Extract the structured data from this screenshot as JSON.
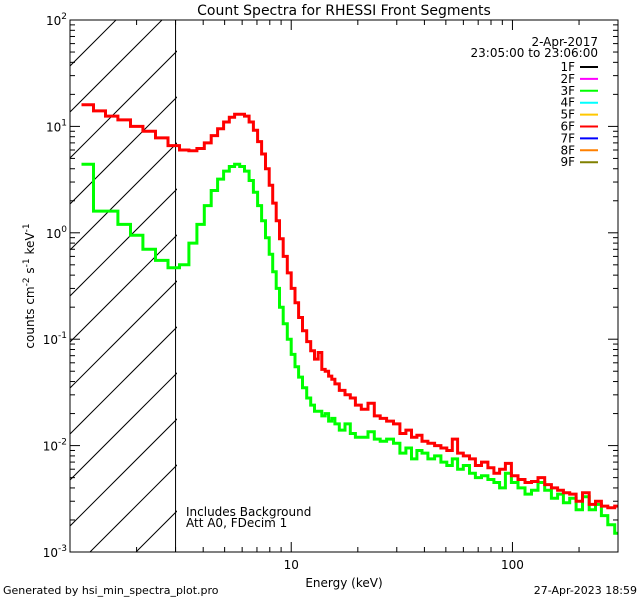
{
  "chart_data": {
    "type": "line",
    "title": "Count Spectra for RHESSI Front Segments",
    "xlabel": "Energy (keV)",
    "ylabel_parts": [
      "counts cm",
      "-2",
      " s",
      "-1",
      " keV",
      "-1"
    ],
    "xscale": "log",
    "yscale": "log",
    "xlim": [
      1,
      300
    ],
    "ylim": [
      0.001,
      100
    ],
    "x_ticks": [
      {
        "value": 10,
        "label": "10"
      },
      {
        "value": 100,
        "label": "100"
      }
    ],
    "x_tick_label_offset_note": "",
    "y_ticks": [
      {
        "value": 0.001,
        "base": "10",
        "exp": "-3"
      },
      {
        "value": 0.01,
        "base": "10",
        "exp": "-2"
      },
      {
        "value": 0.1,
        "base": "10",
        "exp": "-1"
      },
      {
        "value": 1,
        "base": "10",
        "exp": "0"
      },
      {
        "value": 10,
        "base": "10",
        "exp": "1"
      },
      {
        "value": 100,
        "base": "10",
        "exp": "2"
      }
    ],
    "x_minor_ticks": [
      2,
      3,
      4,
      5,
      6,
      7,
      8,
      9,
      20,
      30,
      40,
      50,
      60,
      70,
      80,
      90,
      200,
      300
    ],
    "hatched_region_keV": [
      1,
      3
    ],
    "legend": {
      "placement": "top-right",
      "date": "2-Apr-2017",
      "time_range": "23:05:00 to 23:06:00",
      "entries": [
        {
          "name": "1F",
          "color": "#000000"
        },
        {
          "name": "2F",
          "color": "#ff00ff"
        },
        {
          "name": "3F",
          "color": "#00ff00"
        },
        {
          "name": "4F",
          "color": "#00ffff"
        },
        {
          "name": "5F",
          "color": "#ffc800"
        },
        {
          "name": "6F",
          "color": "#ff0000"
        },
        {
          "name": "7F",
          "color": "#0000ff"
        },
        {
          "name": "8F",
          "color": "#ff8000"
        },
        {
          "name": "9F",
          "color": "#808000"
        }
      ]
    },
    "annotations": [
      "Includes Background",
      "Att A0, FDecim 1"
    ],
    "series": [
      {
        "name": "3F",
        "color": "#00ff00",
        "x": [
          1.2,
          1.36,
          1.54,
          1.76,
          2.0,
          2.28,
          2.6,
          2.96,
          3.3,
          3.6,
          3.9,
          4.2,
          4.5,
          4.8,
          5.1,
          5.4,
          5.7,
          6.0,
          6.3,
          6.6,
          6.9,
          7.2,
          7.5,
          7.8,
          8.1,
          8.4,
          8.7,
          9.0,
          9.4,
          9.8,
          10.2,
          10.6,
          11.0,
          11.5,
          12.0,
          12.5,
          13.0,
          13.5,
          14.0,
          14.5,
          15.0,
          15.5,
          16.0,
          17.0,
          18.0,
          19.0,
          20.0,
          21.5,
          23.0,
          24.5,
          26.0,
          28.0,
          30.0,
          32.0,
          34.0,
          36.0,
          38.0,
          40.0,
          43.0,
          46.0,
          49.0,
          52.0,
          55.0,
          58.0,
          62.0,
          66.0,
          70.0,
          75.0,
          80.0,
          85.0,
          90.0,
          96.0,
          102.0,
          110.0,
          118.0,
          126.0,
          135.0,
          145.0,
          155.0,
          165.0,
          175.0,
          188.0,
          200.0,
          215.0,
          230.0,
          245.0,
          260.0,
          280.0,
          300.0
        ],
        "values": [
          4.4,
          1.6,
          1.6,
          1.2,
          0.95,
          0.7,
          0.55,
          0.47,
          0.5,
          0.8,
          1.2,
          1.8,
          2.5,
          3.2,
          3.8,
          4.2,
          4.4,
          4.2,
          3.8,
          3.1,
          2.4,
          1.8,
          1.3,
          0.9,
          0.63,
          0.43,
          0.3,
          0.2,
          0.14,
          0.1,
          0.072,
          0.055,
          0.044,
          0.035,
          0.028,
          0.024,
          0.021,
          0.021,
          0.019,
          0.02,
          0.017,
          0.018,
          0.016,
          0.014,
          0.016,
          0.013,
          0.012,
          0.012,
          0.0135,
          0.0115,
          0.011,
          0.0115,
          0.0105,
          0.0085,
          0.0095,
          0.0075,
          0.009,
          0.0085,
          0.0075,
          0.008,
          0.007,
          0.0065,
          0.0075,
          0.006,
          0.0065,
          0.0055,
          0.005,
          0.0052,
          0.0048,
          0.0045,
          0.004,
          0.0055,
          0.0045,
          0.004,
          0.0035,
          0.0038,
          0.0045,
          0.0038,
          0.0032,
          0.0035,
          0.0029,
          0.0032,
          0.0025,
          0.0033,
          0.0025,
          0.0028,
          0.0022,
          0.0018,
          0.0015
        ]
      },
      {
        "name": "6F",
        "color": "#ff0000",
        "x": [
          1.2,
          1.36,
          1.54,
          1.76,
          2.0,
          2.28,
          2.6,
          2.96,
          3.3,
          3.6,
          3.9,
          4.2,
          4.5,
          4.8,
          5.1,
          5.4,
          5.7,
          6.0,
          6.3,
          6.6,
          6.9,
          7.2,
          7.5,
          7.8,
          8.1,
          8.4,
          8.7,
          9.0,
          9.4,
          9.8,
          10.2,
          10.6,
          11.0,
          11.5,
          12.0,
          12.5,
          13.0,
          13.5,
          14.0,
          14.5,
          15.0,
          15.5,
          16.0,
          17.0,
          18.0,
          19.0,
          20.0,
          21.5,
          23.0,
          24.5,
          26.0,
          28.0,
          30.0,
          32.0,
          34.0,
          36.0,
          38.0,
          40.0,
          43.0,
          46.0,
          49.0,
          52.0,
          55.0,
          58.0,
          62.0,
          66.0,
          70.0,
          75.0,
          80.0,
          85.0,
          90.0,
          96.0,
          102.0,
          110.0,
          118.0,
          126.0,
          135.0,
          145.0,
          155.0,
          165.0,
          175.0,
          188.0,
          200.0,
          215.0,
          230.0,
          245.0,
          260.0,
          280.0,
          300.0
        ],
        "values": [
          16.0,
          14.0,
          12.5,
          11.5,
          10.0,
          9.0,
          7.8,
          6.6,
          6.0,
          5.9,
          6.2,
          7.0,
          8.2,
          9.5,
          11.0,
          12.2,
          13.0,
          13.0,
          12.5,
          11.0,
          9.2,
          7.2,
          5.5,
          4.0,
          2.8,
          1.9,
          1.3,
          0.88,
          0.6,
          0.42,
          0.3,
          0.22,
          0.16,
          0.12,
          0.095,
          0.078,
          0.065,
          0.075,
          0.052,
          0.05,
          0.045,
          0.042,
          0.038,
          0.033,
          0.03,
          0.028,
          0.024,
          0.022,
          0.025,
          0.019,
          0.018,
          0.017,
          0.016,
          0.013,
          0.014,
          0.012,
          0.0125,
          0.011,
          0.0105,
          0.01,
          0.0095,
          0.009,
          0.0115,
          0.0085,
          0.008,
          0.0075,
          0.0065,
          0.007,
          0.0062,
          0.0055,
          0.006,
          0.0068,
          0.0052,
          0.0048,
          0.0045,
          0.0046,
          0.005,
          0.0043,
          0.004,
          0.0038,
          0.0036,
          0.0035,
          0.003,
          0.0036,
          0.0028,
          0.003,
          0.0027,
          0.0026,
          0.0027
        ]
      }
    ]
  },
  "footer": {
    "generated_by": "Generated by hsi_min_spectra_plot.pro",
    "timestamp": "27-Apr-2023 18:59"
  }
}
